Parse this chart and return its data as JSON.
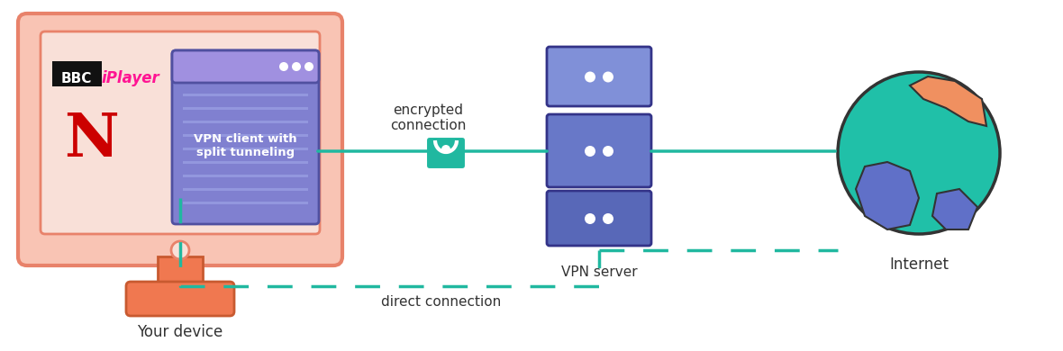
{
  "bg_color": "#ffffff",
  "monitor_body_color": "#f9c4b4",
  "monitor_border_color": "#e8826a",
  "monitor_screen_color": "#f9e0d8",
  "stand_color": "#f07850",
  "stand_border_color": "#c85a30",
  "vpn_window_bg": "#8080d0",
  "vpn_window_header": "#a090e0",
  "vpn_window_dots_color": "#ffffff",
  "vpn_window_text": "VPN client with\nsplit tunneling",
  "bbc_bg_color": "#111111",
  "bbc_text_color": "#ffffff",
  "iplayer_color": "#ff1493",
  "netflix_color": "#cc0000",
  "server_colors": [
    "#8090d8",
    "#6878c8",
    "#5868b8"
  ],
  "server_border_color": "#333388",
  "server_dot_color": "#ffffff",
  "teal_color": "#20b8a0",
  "globe_teal": "#20c0a8",
  "globe_orange": "#f09060",
  "globe_blue": "#6070c8",
  "globe_border": "#333333",
  "text_color": "#333333",
  "label_your_device": "Your device",
  "label_vpn_server": "VPN server",
  "label_internet": "Internet",
  "label_encrypted": "encrypted\nconnection",
  "label_direct": "direct connection"
}
